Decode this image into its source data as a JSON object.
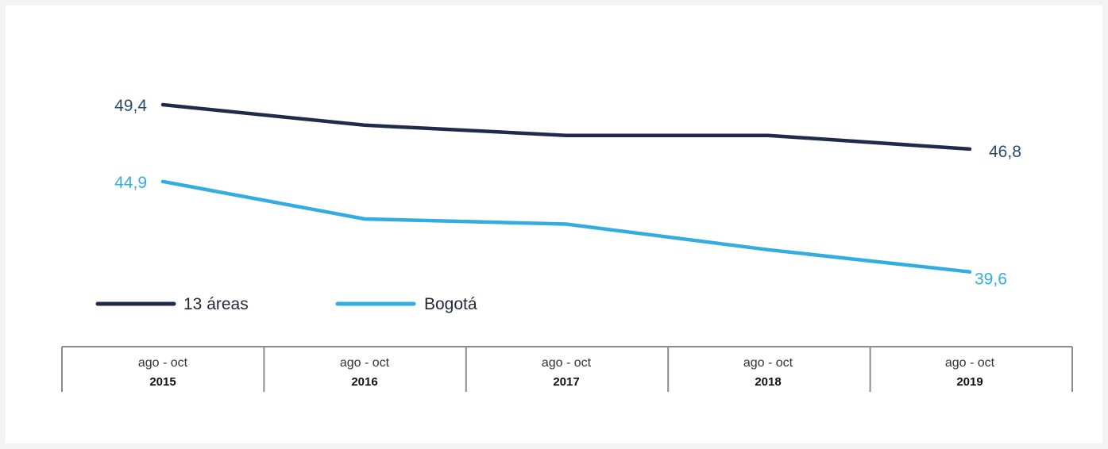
{
  "colors": {
    "series_1": "#1f2a4d",
    "series_1_label": "#2b4a70",
    "series_2": "#33ace0",
    "axis": "#8c8c8c"
  },
  "chart_data": {
    "type": "line",
    "title": "",
    "xlabel": "",
    "ylabel": "",
    "x": [
      {
        "period": "ago - oct",
        "year": "2015"
      },
      {
        "period": "ago - oct",
        "year": "2016"
      },
      {
        "period": "ago - oct",
        "year": "2017"
      },
      {
        "period": "ago - oct",
        "year": "2018"
      },
      {
        "period": "ago - oct",
        "year": "2019"
      }
    ],
    "series": [
      {
        "name": "13 áreas",
        "values": [
          49.4,
          48.2,
          47.6,
          47.6,
          46.8
        ],
        "labels": [
          "49,4",
          "",
          "",
          "",
          "46,8"
        ]
      },
      {
        "name": "Bogotá",
        "values": [
          44.9,
          42.7,
          42.4,
          40.9,
          39.6
        ],
        "labels": [
          "44,9",
          "",
          "",
          "",
          "39,6"
        ]
      }
    ],
    "ylim": [
      38,
      52
    ],
    "grid": false,
    "legend": "bottom-left"
  }
}
